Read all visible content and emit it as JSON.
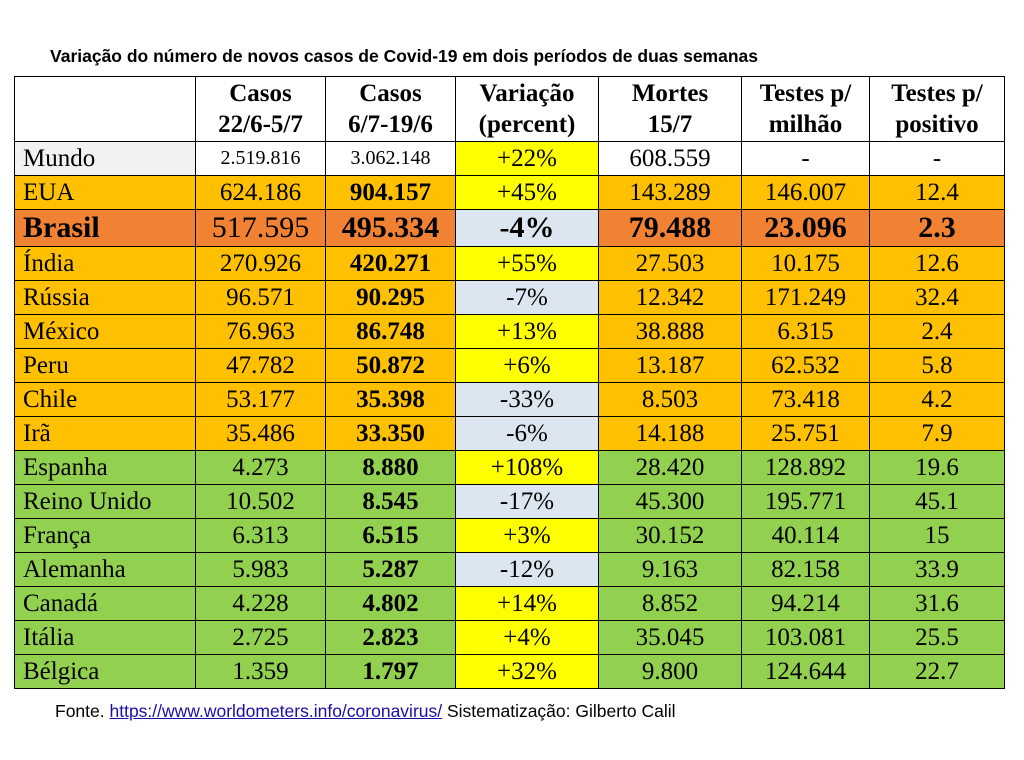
{
  "title": "Variação do número de novos casos de Covid-19 em dois períodos de duas semanas",
  "colors": {
    "gray": "#f2f2f2",
    "orange": "#ffc000",
    "dark_orange": "#f28233",
    "green": "#92d050",
    "yellow": "#ffff00",
    "light_blue": "#dce6f1",
    "white": "#ffffff"
  },
  "table": {
    "headers": [
      {
        "line1": "",
        "line2": ""
      },
      {
        "line1": "Casos",
        "line2": "22/6-5/7"
      },
      {
        "line1": "Casos",
        "line2": "6/7-19/6"
      },
      {
        "line1": "Variação",
        "line2": "(percent)"
      },
      {
        "line1": "Mortes",
        "line2": "15/7"
      },
      {
        "line1": "Testes p/",
        "line2": "milhão"
      },
      {
        "line1": "Testes p/",
        "line2": "positivo"
      }
    ],
    "rows": [
      {
        "country": "Mundo",
        "casos1": "2.519.816",
        "casos2": "3.062.148",
        "variacao": "+22%",
        "mortes": "608.559",
        "testes_milhao": "-",
        "testes_positivo": "-",
        "group": "gray",
        "var_color": "yellow",
        "small_cases": true,
        "bold_cases2": false
      },
      {
        "country": "EUA",
        "casos1": "624.186",
        "casos2": "904.157",
        "variacao": "+45%",
        "mortes": "143.289",
        "testes_milhao": "146.007",
        "testes_positivo": "12.4",
        "group": "orange",
        "var_color": "yellow",
        "small_cases": false,
        "bold_cases2": true
      },
      {
        "country": "Brasil",
        "casos1": "517.595",
        "casos2": "495.334",
        "variacao": "-4%",
        "mortes": "79.488",
        "testes_milhao": "23.096",
        "testes_positivo": "2.3",
        "group": "dark_orange",
        "var_color": "light_blue",
        "small_cases": false,
        "bold_cases2": true,
        "highlight": true
      },
      {
        "country": "Índia",
        "casos1": "270.926",
        "casos2": "420.271",
        "variacao": "+55%",
        "mortes": "27.503",
        "testes_milhao": "10.175",
        "testes_positivo": "12.6",
        "group": "orange",
        "var_color": "yellow",
        "small_cases": false,
        "bold_cases2": true
      },
      {
        "country": "Rússia",
        "casos1": "96.571",
        "casos2": "90.295",
        "variacao": "-7%",
        "mortes": "12.342",
        "testes_milhao": "171.249",
        "testes_positivo": "32.4",
        "group": "orange",
        "var_color": "light_blue",
        "small_cases": false,
        "bold_cases2": true
      },
      {
        "country": "México",
        "casos1": "76.963",
        "casos2": "86.748",
        "variacao": "+13%",
        "mortes": "38.888",
        "testes_milhao": "6.315",
        "testes_positivo": "2.4",
        "group": "orange",
        "var_color": "yellow",
        "small_cases": false,
        "bold_cases2": true
      },
      {
        "country": "Peru",
        "casos1": "47.782",
        "casos2": "50.872",
        "variacao": "+6%",
        "mortes": "13.187",
        "testes_milhao": "62.532",
        "testes_positivo": "5.8",
        "group": "orange",
        "var_color": "yellow",
        "small_cases": false,
        "bold_cases2": true
      },
      {
        "country": "Chile",
        "casos1": "53.177",
        "casos2": "35.398",
        "variacao": "-33%",
        "mortes": "8.503",
        "testes_milhao": "73.418",
        "testes_positivo": "4.2",
        "group": "orange",
        "var_color": "light_blue",
        "small_cases": false,
        "bold_cases2": true
      },
      {
        "country": "Irã",
        "casos1": "35.486",
        "casos2": "33.350",
        "variacao": "-6%",
        "mortes": "14.188",
        "testes_milhao": "25.751",
        "testes_positivo": "7.9",
        "group": "orange",
        "var_color": "light_blue",
        "small_cases": false,
        "bold_cases2": true
      },
      {
        "country": "Espanha",
        "casos1": "4.273",
        "casos2": "8.880",
        "variacao": "+108%",
        "mortes": "28.420",
        "testes_milhao": "128.892",
        "testes_positivo": "19.6",
        "group": "green",
        "var_color": "yellow",
        "small_cases": false,
        "bold_cases2": true
      },
      {
        "country": "Reino Unido",
        "casos1": "10.502",
        "casos2": "8.545",
        "variacao": "-17%",
        "mortes": "45.300",
        "testes_milhao": "195.771",
        "testes_positivo": "45.1",
        "group": "green",
        "var_color": "light_blue",
        "small_cases": false,
        "bold_cases2": true
      },
      {
        "country": "França",
        "casos1": "6.313",
        "casos2": "6.515",
        "variacao": "+3%",
        "mortes": "30.152",
        "testes_milhao": "40.114",
        "testes_positivo": "15",
        "group": "green",
        "var_color": "yellow",
        "small_cases": false,
        "bold_cases2": true
      },
      {
        "country": "Alemanha",
        "casos1": "5.983",
        "casos2": "5.287",
        "variacao": "-12%",
        "mortes": "9.163",
        "testes_milhao": "82.158",
        "testes_positivo": "33.9",
        "group": "green",
        "var_color": "light_blue",
        "small_cases": false,
        "bold_cases2": true
      },
      {
        "country": "Canadá",
        "casos1": "4.228",
        "casos2": "4.802",
        "variacao": "+14%",
        "mortes": "8.852",
        "testes_milhao": "94.214",
        "testes_positivo": "31.6",
        "group": "green",
        "var_color": "yellow",
        "small_cases": false,
        "bold_cases2": true
      },
      {
        "country": "Itália",
        "casos1": "2.725",
        "casos2": "2.823",
        "variacao": "+4%",
        "mortes": "35.045",
        "testes_milhao": "103.081",
        "testes_positivo": "25.5",
        "group": "green",
        "var_color": "yellow",
        "small_cases": false,
        "bold_cases2": true
      },
      {
        "country": "Bélgica",
        "casos1": "1.359",
        "casos2": "1.797",
        "variacao": "+32%",
        "mortes": "9.800",
        "testes_milhao": "124.644",
        "testes_positivo": "22.7",
        "group": "green",
        "var_color": "yellow",
        "small_cases": false,
        "bold_cases2": true
      }
    ]
  },
  "footer": {
    "prefix": "Fonte. ",
    "link_text": "https://www.worldometers.info/coronavirus/",
    "suffix": " Sistematização: Gilberto Calil"
  }
}
